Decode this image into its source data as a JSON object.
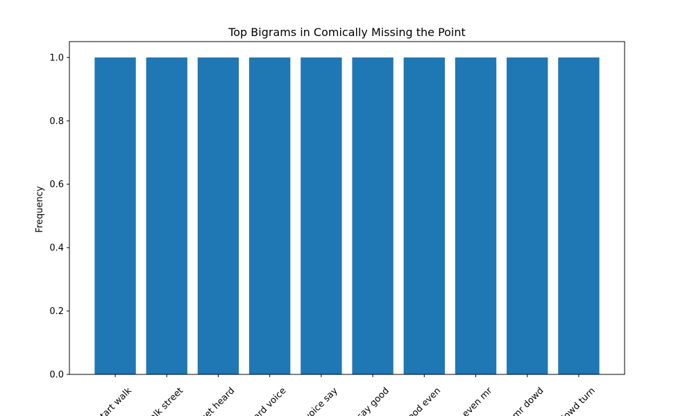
{
  "chart_data": {
    "type": "bar",
    "title": "Top Bigrams in Comically Missing the Point",
    "xlabel": "",
    "ylabel": "Frequency",
    "categories": [
      "start walk",
      "walk street",
      "street heard",
      "heard voice",
      "voice say",
      "say good",
      "good even",
      "even mr",
      "mr dowd",
      "dowd turn"
    ],
    "values": [
      1,
      1,
      1,
      1,
      1,
      1,
      1,
      1,
      1,
      1
    ],
    "ylim": [
      0,
      1.05
    ],
    "yticks": [
      "0.0",
      "0.2",
      "0.4",
      "0.6",
      "0.8",
      "1.0"
    ],
    "bar_color": "#1f77b4",
    "grid": false,
    "legend": "none"
  }
}
